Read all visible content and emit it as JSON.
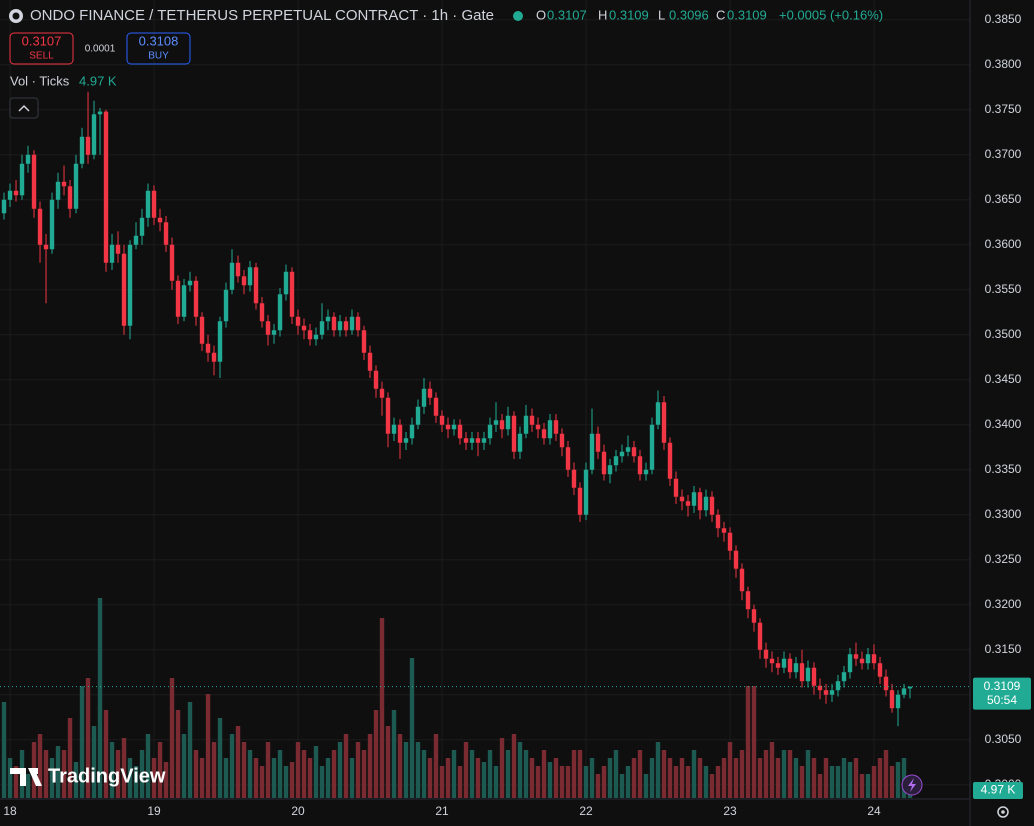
{
  "chart_data": {
    "type": "candlestick",
    "title": "ONDO FINANCE / TETHERUS PERPETUAL CONTRACT · 1h · Gate",
    "ohlc_header": [
      [
        "O",
        "0.3107"
      ],
      [
        "H",
        "0.3109"
      ],
      [
        "L",
        "0.3096"
      ],
      [
        "C",
        "0.3109"
      ]
    ],
    "change": "+0.0005 (+0.16%)",
    "sell": {
      "price": "0.3107",
      "label": "SELL"
    },
    "spread": "0.0001",
    "buy": {
      "price": "0.3108",
      "label": "BUY"
    },
    "volume_legend": {
      "name": "Vol · Ticks",
      "value": "4.97 K"
    },
    "last_price_label": "0.3109",
    "countdown": "50:54",
    "volume_last_label": "4.97 K",
    "watermark": "TradingView",
    "up_color": "#22ab94",
    "down_color": "#f23645",
    "volume_up_color": "#1c5a52",
    "volume_down_color": "#7a2a31",
    "grid": true,
    "xlim": [
      -0.67,
      161
    ],
    "xticks": [
      {
        "value": 1,
        "label": "18"
      },
      {
        "value": 25,
        "label": "19"
      },
      {
        "value": 49,
        "label": "20"
      },
      {
        "value": 73,
        "label": "21"
      },
      {
        "value": 97,
        "label": "22"
      },
      {
        "value": 121,
        "label": "23"
      },
      {
        "value": 145,
        "label": "24"
      }
    ],
    "ylim": [
      0.2983,
      0.3872
    ],
    "yticks": [
      {
        "value": 0.3,
        "label": "0.3000"
      },
      {
        "value": 0.305,
        "label": "0.3050"
      },
      {
        "value": 0.31,
        "label": "0.3100"
      },
      {
        "value": 0.315,
        "label": "0.3150"
      },
      {
        "value": 0.32,
        "label": "0.3200"
      },
      {
        "value": 0.325,
        "label": "0.3250"
      },
      {
        "value": 0.33,
        "label": "0.3300"
      },
      {
        "value": 0.335,
        "label": "0.3350"
      },
      {
        "value": 0.34,
        "label": "0.3400"
      },
      {
        "value": 0.345,
        "label": "0.3450"
      },
      {
        "value": 0.35,
        "label": "0.3500"
      },
      {
        "value": 0.355,
        "label": "0.3550"
      },
      {
        "value": 0.36,
        "label": "0.3600"
      },
      {
        "value": 0.365,
        "label": "0.3650"
      },
      {
        "value": 0.37,
        "label": "0.3700"
      },
      {
        "value": 0.375,
        "label": "0.3750"
      },
      {
        "value": 0.38,
        "label": "0.3800"
      },
      {
        "value": 0.385,
        "label": "0.3850"
      }
    ],
    "volume_lim": [
      0,
      50
    ],
    "candles": [
      [
        0.3635,
        0.3658,
        0.3628,
        0.365
      ],
      [
        0.365,
        0.3668,
        0.3642,
        0.366
      ],
      [
        0.366,
        0.3672,
        0.3648,
        0.3655
      ],
      [
        0.3655,
        0.37,
        0.365,
        0.369
      ],
      [
        0.369,
        0.371,
        0.368,
        0.37
      ],
      [
        0.37,
        0.3705,
        0.363,
        0.364
      ],
      [
        0.364,
        0.3648,
        0.358,
        0.36
      ],
      [
        0.36,
        0.3612,
        0.3535,
        0.3595
      ],
      [
        0.3595,
        0.3658,
        0.359,
        0.365
      ],
      [
        0.365,
        0.368,
        0.364,
        0.367
      ],
      [
        0.367,
        0.3688,
        0.3655,
        0.3665
      ],
      [
        0.3665,
        0.3672,
        0.363,
        0.364
      ],
      [
        0.364,
        0.37,
        0.3635,
        0.369
      ],
      [
        0.369,
        0.373,
        0.3685,
        0.372
      ],
      [
        0.372,
        0.377,
        0.369,
        0.37
      ],
      [
        0.37,
        0.376,
        0.3695,
        0.3745
      ],
      [
        0.3745,
        0.3752,
        0.37,
        0.3748
      ],
      [
        0.3748,
        0.375,
        0.357,
        0.358
      ],
      [
        0.358,
        0.3612,
        0.3572,
        0.36
      ],
      [
        0.36,
        0.3615,
        0.358,
        0.359
      ],
      [
        0.359,
        0.36,
        0.35,
        0.351
      ],
      [
        0.351,
        0.3605,
        0.3495,
        0.36
      ],
      [
        0.36,
        0.3625,
        0.3595,
        0.361
      ],
      [
        0.361,
        0.364,
        0.36,
        0.363
      ],
      [
        0.363,
        0.3668,
        0.362,
        0.366
      ],
      [
        0.366,
        0.3666,
        0.3622,
        0.363
      ],
      [
        0.363,
        0.364,
        0.3615,
        0.3625
      ],
      [
        0.3625,
        0.3632,
        0.3592,
        0.36
      ],
      [
        0.36,
        0.3608,
        0.355,
        0.356
      ],
      [
        0.356,
        0.3566,
        0.3512,
        0.352
      ],
      [
        0.352,
        0.3562,
        0.3515,
        0.3555
      ],
      [
        0.3555,
        0.357,
        0.3548,
        0.356
      ],
      [
        0.356,
        0.3565,
        0.351,
        0.352
      ],
      [
        0.352,
        0.3525,
        0.3482,
        0.349
      ],
      [
        0.349,
        0.35,
        0.347,
        0.348
      ],
      [
        0.348,
        0.3488,
        0.3455,
        0.347
      ],
      [
        0.347,
        0.352,
        0.3452,
        0.3515
      ],
      [
        0.3515,
        0.3558,
        0.3508,
        0.355
      ],
      [
        0.355,
        0.3595,
        0.3545,
        0.358
      ],
      [
        0.358,
        0.3588,
        0.3558,
        0.3565
      ],
      [
        0.3565,
        0.3572,
        0.3545,
        0.3555
      ],
      [
        0.3555,
        0.3582,
        0.3548,
        0.3575
      ],
      [
        0.3575,
        0.358,
        0.3528,
        0.3535
      ],
      [
        0.3535,
        0.3542,
        0.3508,
        0.3515
      ],
      [
        0.3515,
        0.3522,
        0.3488,
        0.35
      ],
      [
        0.35,
        0.3512,
        0.349,
        0.3505
      ],
      [
        0.3505,
        0.3552,
        0.3498,
        0.3545
      ],
      [
        0.3545,
        0.3578,
        0.3538,
        0.357
      ],
      [
        0.357,
        0.3575,
        0.3512,
        0.352
      ],
      [
        0.352,
        0.3528,
        0.35,
        0.351
      ],
      [
        0.351,
        0.3518,
        0.3495,
        0.3505
      ],
      [
        0.3505,
        0.3512,
        0.3488,
        0.3495
      ],
      [
        0.3495,
        0.3508,
        0.3488,
        0.35
      ],
      [
        0.35,
        0.3535,
        0.3495,
        0.3515
      ],
      [
        0.3515,
        0.3528,
        0.3505,
        0.352
      ],
      [
        0.352,
        0.3525,
        0.3498,
        0.3505
      ],
      [
        0.3505,
        0.3522,
        0.3498,
        0.3515
      ],
      [
        0.3515,
        0.352,
        0.3498,
        0.3505
      ],
      [
        0.3505,
        0.3528,
        0.35,
        0.352
      ],
      [
        0.352,
        0.3525,
        0.3498,
        0.3505
      ],
      [
        0.3505,
        0.351,
        0.3472,
        0.348
      ],
      [
        0.348,
        0.3488,
        0.3452,
        0.346
      ],
      [
        0.346,
        0.3466,
        0.343,
        0.344
      ],
      [
        0.344,
        0.3448,
        0.341,
        0.343
      ],
      [
        0.343,
        0.3436,
        0.3375,
        0.339
      ],
      [
        0.339,
        0.3408,
        0.3382,
        0.34
      ],
      [
        0.34,
        0.3406,
        0.3362,
        0.338
      ],
      [
        0.338,
        0.3392,
        0.3372,
        0.3385
      ],
      [
        0.3385,
        0.3408,
        0.3378,
        0.34
      ],
      [
        0.34,
        0.3428,
        0.3395,
        0.342
      ],
      [
        0.342,
        0.3452,
        0.3412,
        0.344
      ],
      [
        0.344,
        0.3448,
        0.3422,
        0.343
      ],
      [
        0.343,
        0.3436,
        0.3402,
        0.341
      ],
      [
        0.341,
        0.3416,
        0.3392,
        0.34
      ],
      [
        0.34,
        0.3408,
        0.3385,
        0.3395
      ],
      [
        0.3395,
        0.3406,
        0.3388,
        0.34
      ],
      [
        0.34,
        0.3406,
        0.3378,
        0.3385
      ],
      [
        0.3385,
        0.3392,
        0.3372,
        0.338
      ],
      [
        0.338,
        0.3392,
        0.3372,
        0.3385
      ],
      [
        0.3385,
        0.3392,
        0.3365,
        0.338
      ],
      [
        0.338,
        0.3392,
        0.3372,
        0.3385
      ],
      [
        0.3385,
        0.3408,
        0.3378,
        0.34
      ],
      [
        0.34,
        0.3425,
        0.3392,
        0.3405
      ],
      [
        0.3405,
        0.3412,
        0.3385,
        0.3395
      ],
      [
        0.3395,
        0.342,
        0.3388,
        0.341
      ],
      [
        0.341,
        0.3415,
        0.3362,
        0.337
      ],
      [
        0.337,
        0.3398,
        0.3362,
        0.339
      ],
      [
        0.339,
        0.3422,
        0.3385,
        0.341
      ],
      [
        0.341,
        0.3418,
        0.3392,
        0.34
      ],
      [
        0.34,
        0.3408,
        0.3385,
        0.3395
      ],
      [
        0.3395,
        0.3402,
        0.3378,
        0.3385
      ],
      [
        0.3385,
        0.3412,
        0.3378,
        0.3405
      ],
      [
        0.3405,
        0.3412,
        0.3382,
        0.339
      ],
      [
        0.339,
        0.3396,
        0.3365,
        0.3375
      ],
      [
        0.3375,
        0.3382,
        0.3342,
        0.335
      ],
      [
        0.335,
        0.3358,
        0.3322,
        0.333
      ],
      [
        0.333,
        0.3336,
        0.3292,
        0.33
      ],
      [
        0.33,
        0.3358,
        0.3294,
        0.335
      ],
      [
        0.335,
        0.3418,
        0.3345,
        0.339
      ],
      [
        0.339,
        0.3398,
        0.3362,
        0.337
      ],
      [
        0.337,
        0.3378,
        0.3338,
        0.3345
      ],
      [
        0.3345,
        0.3362,
        0.3335,
        0.3355
      ],
      [
        0.3355,
        0.3372,
        0.3348,
        0.3365
      ],
      [
        0.3365,
        0.3378,
        0.3358,
        0.337
      ],
      [
        0.337,
        0.3388,
        0.3365,
        0.3375
      ],
      [
        0.3375,
        0.3382,
        0.3358,
        0.3365
      ],
      [
        0.3365,
        0.3372,
        0.3338,
        0.3345
      ],
      [
        0.3345,
        0.3358,
        0.3338,
        0.335
      ],
      [
        0.335,
        0.3408,
        0.3345,
        0.34
      ],
      [
        0.34,
        0.3438,
        0.3395,
        0.3425
      ],
      [
        0.3425,
        0.3432,
        0.3372,
        0.338
      ],
      [
        0.338,
        0.3386,
        0.3332,
        0.334
      ],
      [
        0.334,
        0.3348,
        0.3312,
        0.332
      ],
      [
        0.332,
        0.3328,
        0.3305,
        0.3315
      ],
      [
        0.3315,
        0.3322,
        0.3298,
        0.331
      ],
      [
        0.331,
        0.3332,
        0.3302,
        0.3325
      ],
      [
        0.3325,
        0.333,
        0.3295,
        0.3305
      ],
      [
        0.3305,
        0.3328,
        0.3298,
        0.332
      ],
      [
        0.332,
        0.3326,
        0.3292,
        0.33
      ],
      [
        0.33,
        0.3306,
        0.3275,
        0.3285
      ],
      [
        0.3285,
        0.3292,
        0.327,
        0.328
      ],
      [
        0.328,
        0.3286,
        0.325,
        0.326
      ],
      [
        0.326,
        0.3266,
        0.323,
        0.324
      ],
      [
        0.324,
        0.3246,
        0.3205,
        0.3215
      ],
      [
        0.3215,
        0.322,
        0.3185,
        0.3195
      ],
      [
        0.3195,
        0.32,
        0.317,
        0.318
      ],
      [
        0.318,
        0.3185,
        0.314,
        0.315
      ],
      [
        0.315,
        0.3158,
        0.313,
        0.314
      ],
      [
        0.314,
        0.3148,
        0.3125,
        0.3135
      ],
      [
        0.3135,
        0.3142,
        0.3122,
        0.313
      ],
      [
        0.313,
        0.3148,
        0.3124,
        0.314
      ],
      [
        0.314,
        0.3146,
        0.3118,
        0.3125
      ],
      [
        0.3125,
        0.3142,
        0.3118,
        0.3135
      ],
      [
        0.3135,
        0.315,
        0.3108,
        0.3115
      ],
      [
        0.3115,
        0.3138,
        0.3108,
        0.313
      ],
      [
        0.313,
        0.3136,
        0.31,
        0.311
      ],
      [
        0.311,
        0.3118,
        0.3095,
        0.3105
      ],
      [
        0.3105,
        0.3112,
        0.309,
        0.31
      ],
      [
        0.31,
        0.3112,
        0.3092,
        0.3105
      ],
      [
        0.3105,
        0.3122,
        0.3098,
        0.3115
      ],
      [
        0.3115,
        0.3132,
        0.3108,
        0.3125
      ],
      [
        0.3125,
        0.3152,
        0.3118,
        0.3145
      ],
      [
        0.3145,
        0.3158,
        0.3132,
        0.314
      ],
      [
        0.314,
        0.3148,
        0.3128,
        0.3135
      ],
      [
        0.3135,
        0.3152,
        0.3128,
        0.3145
      ],
      [
        0.3145,
        0.3156,
        0.3128,
        0.3135
      ],
      [
        0.3135,
        0.3142,
        0.3112,
        0.312
      ],
      [
        0.312,
        0.3128,
        0.3098,
        0.3105
      ],
      [
        0.3105,
        0.3112,
        0.308,
        0.3085
      ],
      [
        0.3085,
        0.3105,
        0.3065,
        0.31
      ],
      [
        0.31,
        0.3112,
        0.3096,
        0.3107
      ],
      [
        0.3107,
        0.3109,
        0.3096,
        0.3109
      ]
    ],
    "volumes": [
      24,
      10,
      8,
      12,
      6,
      14,
      16,
      12,
      10,
      13,
      12,
      20,
      9,
      28,
      30,
      18,
      50,
      22,
      14,
      12,
      15,
      10,
      8,
      12,
      16,
      10,
      14,
      9,
      30,
      22,
      16,
      24,
      12,
      10,
      26,
      14,
      20,
      10,
      16,
      18,
      14,
      12,
      10,
      8,
      14,
      10,
      12,
      8,
      9,
      14,
      12,
      10,
      13,
      8,
      10,
      12,
      14,
      16,
      10,
      14,
      12,
      16,
      22,
      45,
      18,
      22,
      16,
      14,
      35,
      14,
      12,
      10,
      16,
      8,
      10,
      12,
      8,
      14,
      12,
      10,
      9,
      12,
      8,
      15,
      12,
      16,
      14,
      12,
      10,
      8,
      12,
      9,
      10,
      8,
      8,
      12,
      12,
      8,
      10,
      6,
      8,
      10,
      12,
      6,
      8,
      10,
      12,
      6,
      10,
      14,
      12,
      10,
      8,
      10,
      8,
      12,
      10,
      8,
      6,
      8,
      10,
      14,
      10,
      12,
      28,
      28,
      10,
      12,
      14,
      10,
      12,
      12,
      10,
      8,
      12,
      10,
      6,
      10,
      8,
      8,
      10,
      9,
      10,
      6,
      6,
      8,
      10,
      12,
      8,
      9,
      10,
      4.97
    ]
  }
}
